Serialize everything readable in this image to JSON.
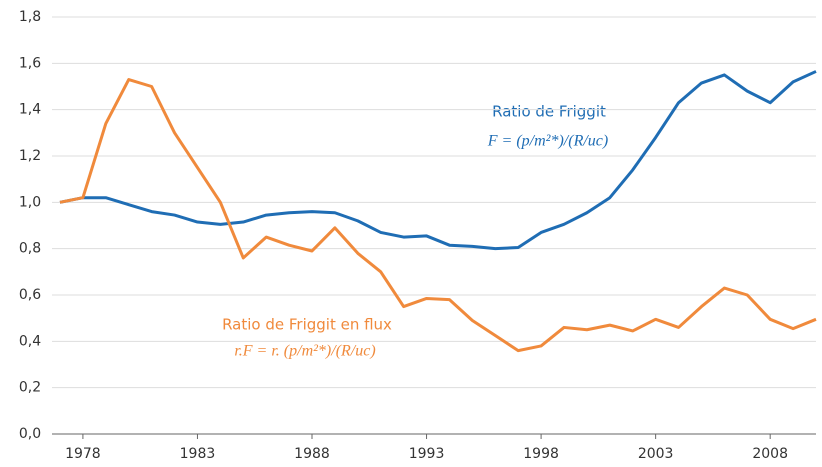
{
  "chart_data": {
    "type": "line",
    "x": [
      1977,
      1978,
      1979,
      1980,
      1981,
      1982,
      1983,
      1984,
      1985,
      1986,
      1987,
      1988,
      1989,
      1990,
      1991,
      1992,
      1993,
      1994,
      1995,
      1996,
      1997,
      1998,
      1999,
      2000,
      2001,
      2002,
      2003,
      2004,
      2005,
      2006,
      2007,
      2008,
      2009,
      2010
    ],
    "series": [
      {
        "name": "Ratio de Friggit",
        "color": "#1f6db4",
        "values": [
          1.0,
          1.02,
          1.02,
          0.99,
          0.96,
          0.945,
          0.915,
          0.905,
          0.915,
          0.945,
          0.955,
          0.96,
          0.955,
          0.92,
          0.87,
          0.85,
          0.855,
          0.815,
          0.81,
          0.8,
          0.805,
          0.87,
          0.905,
          0.955,
          1.02,
          1.14,
          1.28,
          1.43,
          1.515,
          1.55,
          1.48,
          1.43,
          1.52,
          1.565
        ]
      },
      {
        "name": "Ratio de Friggit en flux",
        "color": "#f08a3c",
        "values": [
          1.0,
          1.02,
          1.34,
          1.53,
          1.5,
          1.3,
          1.15,
          1.0,
          0.76,
          0.85,
          0.815,
          0.79,
          0.89,
          0.78,
          0.7,
          0.55,
          0.585,
          0.58,
          0.49,
          0.425,
          0.36,
          0.38,
          0.46,
          0.45,
          0.47,
          0.445,
          0.495,
          0.46,
          0.55,
          0.63,
          0.6,
          0.495,
          0.455,
          0.495
        ]
      }
    ],
    "formulas": [
      "F = (p/m²*)/(R/uc)",
      "r.F = r. (p/m²*)/(R/uc)"
    ],
    "xlim": [
      1977,
      2010
    ],
    "xticks": [
      1978,
      1983,
      1988,
      1993,
      1998,
      2003,
      2008
    ],
    "ylim": [
      0,
      1.8
    ],
    "yticks": [
      {
        "value": 0,
        "label": "0,0"
      },
      {
        "value": 0.2,
        "label": "0,2"
      },
      {
        "value": 0.4,
        "label": "0,4"
      },
      {
        "value": 0.6,
        "label": "0,6"
      },
      {
        "value": 0.8,
        "label": "0,8"
      },
      {
        "value": 1.0,
        "label": "1,0"
      },
      {
        "value": 1.2,
        "label": "1,2"
      },
      {
        "value": 1.4,
        "label": "1,4"
      },
      {
        "value": 1.6,
        "label": "1,6"
      },
      {
        "value": 1.8,
        "label": "1,8"
      }
    ],
    "grid": true
  }
}
